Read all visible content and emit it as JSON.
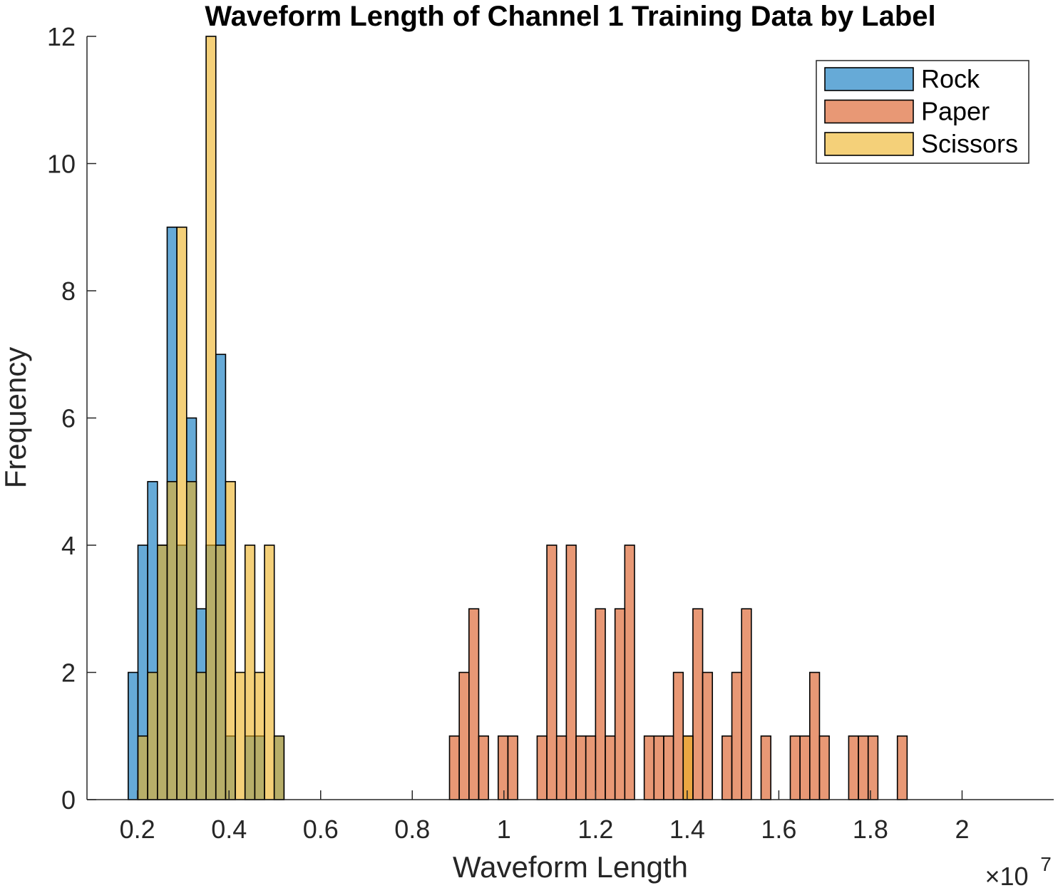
{
  "chart_data": {
    "type": "histogram",
    "title": "Waveform Length of Channel 1 Training Data by Label",
    "xlabel": "Waveform Length",
    "ylabel": "Frequency",
    "x_exponent": {
      "base": "×10",
      "power": "7"
    },
    "x_scale_note": "x values in units of 1e7",
    "xlim": [
      0.09,
      2.2
    ],
    "ylim": [
      0,
      12
    ],
    "xticks": [
      0.2,
      0.4,
      0.6,
      0.8,
      1.0,
      1.2,
      1.4,
      1.6,
      1.8,
      2.0
    ],
    "xtick_labels": [
      "0.2",
      "0.4",
      "0.6",
      "0.8",
      "1",
      "1.2",
      "1.4",
      "1.6",
      "1.8",
      "2"
    ],
    "yticks": [
      0,
      2,
      4,
      6,
      8,
      10,
      12
    ],
    "ytick_labels": [
      "0",
      "2",
      "4",
      "6",
      "8",
      "10",
      "12"
    ],
    "bin_start": 0.18,
    "bin_width": 0.02125,
    "grid": false,
    "legend_position": "top-right",
    "series": [
      {
        "name": "Rock",
        "color": "#0072BD",
        "counts": [
          2,
          4,
          5,
          4,
          9,
          4,
          6,
          3,
          4,
          7,
          1,
          0,
          1,
          1,
          0,
          1
        ]
      },
      {
        "name": "Paper",
        "color": "#D95319",
        "counts": [
          0,
          0,
          0,
          0,
          0,
          0,
          0,
          0,
          0,
          0,
          0,
          0,
          0,
          0,
          0,
          0,
          0,
          0,
          0,
          0,
          0,
          0,
          0,
          0,
          0,
          0,
          0,
          0,
          0,
          0,
          0,
          0,
          0,
          1,
          2,
          3,
          1,
          0,
          1,
          1,
          0,
          0,
          1,
          4,
          1,
          4,
          1,
          1,
          3,
          1,
          3,
          4,
          0,
          1,
          1,
          1,
          2,
          1,
          3,
          2,
          0,
          1,
          2,
          3,
          0,
          1,
          0,
          0,
          1,
          1,
          2,
          1,
          0,
          0,
          1,
          1,
          1,
          0,
          0,
          1
        ]
      },
      {
        "name": "Scissors",
        "color": "#EDB120",
        "counts": [
          0,
          1,
          2,
          4,
          5,
          9,
          5,
          2,
          12,
          4,
          5,
          2,
          4,
          2,
          4,
          1,
          0,
          0,
          0,
          0,
          0,
          0,
          0,
          0,
          0,
          0,
          0,
          0,
          0,
          0,
          0,
          0,
          0,
          0,
          0,
          0,
          0,
          0,
          0,
          0,
          0,
          0,
          0,
          0,
          0,
          0,
          0,
          0,
          0,
          0,
          0,
          0,
          0,
          0,
          0,
          0,
          0,
          1
        ]
      }
    ]
  }
}
